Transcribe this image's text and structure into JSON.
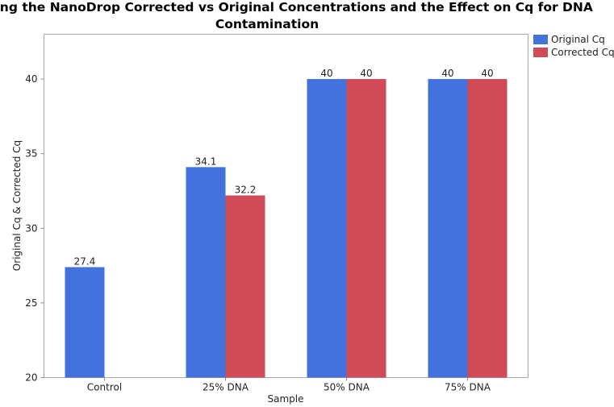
{
  "chart_data": {
    "type": "bar",
    "title_lines": [
      "Comparing the NanoDrop Corrected vs Original Concentrations and the Effect on Cq for DNA",
      "Contamination"
    ],
    "xlabel": "Sample",
    "ylabel": "Original Cq & Corrected Cq",
    "categories": [
      "Control",
      "25% DNA",
      "50% DNA",
      "75% DNA"
    ],
    "series": [
      {
        "name": "Original Cq",
        "color": "#4472dc",
        "values": [
          27.4,
          34.1,
          40,
          40
        ],
        "labels": [
          "27.4",
          "34.1",
          "40",
          "40"
        ]
      },
      {
        "name": "Corrected Cq",
        "color": "#d04a58",
        "values": [
          null,
          32.2,
          40,
          40
        ],
        "labels": [
          "",
          "32.2",
          "40",
          "40"
        ]
      }
    ],
    "ylim": [
      20,
      43
    ],
    "yticks": [
      20,
      25,
      30,
      35,
      40
    ],
    "ytick_labels": [
      "20",
      "25",
      "30",
      "35",
      "40"
    ],
    "grid": false,
    "legend_position": "top-right"
  }
}
